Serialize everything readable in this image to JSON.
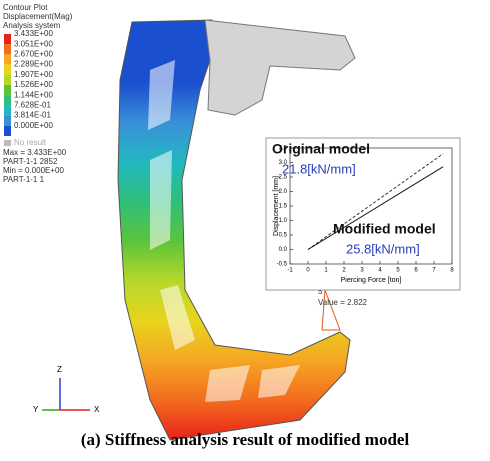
{
  "legend": {
    "title": [
      "Contour Plot",
      "Displacement(Mag)",
      "Analysis system"
    ],
    "levels": [
      "3.433E+00",
      "3.051E+00",
      "2.670E+00",
      "2.289E+00",
      "1.907E+00",
      "1.526E+00",
      "1.144E+00",
      "7.628E-01",
      "3.814E-01",
      "0.000E+00"
    ],
    "colors": [
      "#e8221a",
      "#f26b1e",
      "#f5a623",
      "#e8d41c",
      "#b6d82a",
      "#5cc43a",
      "#2fbf7a",
      "#22b8c0",
      "#3a8fd8",
      "#1a4fd0"
    ],
    "no_result": "No result",
    "info": [
      "Max = 3.433E+00",
      "PART-1-1 2852",
      "Min = 0.000E+00",
      "PART-1-1 1"
    ]
  },
  "probe": {
    "node": "5",
    "value": "Value = 2.822"
  },
  "triad": {
    "z": "Z",
    "y": "Y",
    "x": "X"
  },
  "chart_data": {
    "type": "line",
    "xlabel": "Piercing Force [ton]",
    "ylabel": "Displacement [mm]",
    "xlim": [
      -1,
      8
    ],
    "ylim": [
      -0.5,
      3.5
    ],
    "xticks": [
      -1,
      0,
      1,
      2,
      3,
      4,
      5,
      6,
      7,
      8
    ],
    "yticks": [
      -0.5,
      {
        "value": 0,
        "label": "0.0"
      },
      0.5,
      {
        "value": 1,
        "label": "1.0"
      },
      1.5,
      {
        "value": 2,
        "label": "2.0"
      },
      2.5,
      {
        "value": 3,
        "label": "3.0"
      },
      3.5
    ],
    "series": [
      {
        "name": "Original model",
        "color": "#333333",
        "dashed": true,
        "x": [
          0,
          7.5
        ],
        "values": [
          0,
          3.3
        ]
      },
      {
        "name": "Modified model",
        "color": "#111111",
        "dashed": false,
        "x": [
          0,
          7.5
        ],
        "values": [
          0,
          2.85
        ]
      }
    ],
    "annotations": [
      "21.8[kN/mm]",
      "25.8[kN/mm]"
    ]
  },
  "caption": "(a) Stiffness analysis result of modified model"
}
